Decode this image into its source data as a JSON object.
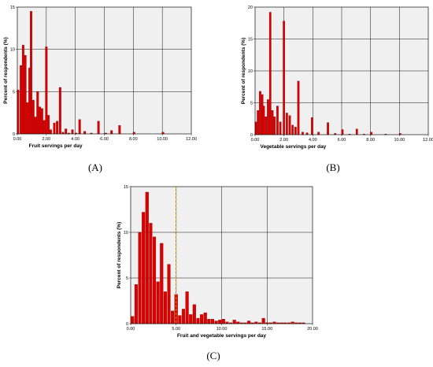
{
  "chart_data": [
    {
      "type": "bar",
      "panel_label": "(A)",
      "xlabel": "Fruit servings per day",
      "ylabel": "Percent of respondents (%)",
      "xlim": [
        0,
        12
      ],
      "ylim": [
        0,
        15
      ],
      "xticks": [
        "0.00",
        "2.00",
        "4.00",
        "6.00",
        "8.00",
        "10.00",
        "12.00"
      ],
      "yticks": [
        "0",
        "5",
        "10",
        "15"
      ],
      "grid": true,
      "bar_color": "#dd0000",
      "plot_bg": "#f0f0f0",
      "x": [
        0.05,
        0.25,
        0.4,
        0.55,
        0.7,
        0.85,
        0.95,
        1.1,
        1.25,
        1.4,
        1.55,
        1.7,
        1.85,
        2.0,
        2.15,
        2.3,
        2.55,
        2.75,
        2.95,
        3.15,
        3.35,
        3.55,
        3.8,
        4.05,
        4.3,
        4.65,
        5.1,
        5.6,
        6.1,
        6.5,
        7.05,
        8.05,
        10.05
      ],
      "values": [
        5.2,
        8.1,
        10.5,
        9.3,
        3.7,
        7.8,
        14.5,
        4.0,
        2.0,
        5.0,
        3.2,
        3.0,
        1.6,
        10.3,
        2.2,
        0.5,
        1.3,
        1.5,
        5.5,
        0.2,
        0.6,
        0.1,
        0.5,
        0.1,
        1.7,
        0.3,
        0.1,
        1.5,
        0.1,
        0.4,
        1.0,
        0.2,
        0.2
      ]
    },
    {
      "type": "bar",
      "panel_label": "(B)",
      "xlabel": "Vegetable servings per day",
      "ylabel": "Percent of respondents (%)",
      "xlim": [
        0,
        12
      ],
      "ylim": [
        0,
        20
      ],
      "xticks": [
        "0.00",
        "2.00",
        "4.00",
        "6.00",
        "8.00",
        "10.00",
        "12.00"
      ],
      "yticks": [
        "0",
        "5",
        "10",
        "15",
        "20"
      ],
      "grid": true,
      "bar_color": "#dd0000",
      "plot_bg": "#f0f0f0",
      "x": [
        0.05,
        0.2,
        0.35,
        0.5,
        0.6,
        0.75,
        0.9,
        1.05,
        1.2,
        1.35,
        1.55,
        1.75,
        2.0,
        2.2,
        2.4,
        2.6,
        2.8,
        3.0,
        3.3,
        3.6,
        3.95,
        4.4,
        5.05,
        5.55,
        6.05,
        6.55,
        7.05,
        7.55,
        8.05,
        9.05,
        10.05
      ],
      "values": [
        2.0,
        3.8,
        6.8,
        6.3,
        4.5,
        2.8,
        5.5,
        19.2,
        3.8,
        2.8,
        4.5,
        2.0,
        17.8,
        3.4,
        3.0,
        1.5,
        1.2,
        8.4,
        0.4,
        0.3,
        2.7,
        0.4,
        1.9,
        0.2,
        0.8,
        0.1,
        0.9,
        0.1,
        0.4,
        0.1,
        0.2
      ]
    },
    {
      "type": "bar",
      "panel_label": "(C)",
      "xlabel": "Fruit and vegetable servings per day",
      "ylabel": "Percent of respondents (%)",
      "xlim": [
        0,
        20
      ],
      "ylim": [
        0,
        15
      ],
      "xticks": [
        "0.00",
        "5.00",
        "10.00",
        "15.00",
        "20.00"
      ],
      "yticks": [
        "0",
        "5",
        "10",
        "15"
      ],
      "grid": true,
      "reference_line_x": 5,
      "bar_color": "#dd0000",
      "plot_bg": "#f0f0f0",
      "x": [
        0.2,
        0.6,
        1.0,
        1.4,
        1.8,
        2.2,
        2.6,
        3.0,
        3.4,
        3.8,
        4.2,
        4.6,
        5.0,
        5.4,
        5.8,
        6.2,
        6.6,
        7.0,
        7.4,
        7.8,
        8.2,
        8.6,
        9.0,
        9.4,
        9.8,
        10.2,
        10.6,
        11.0,
        11.4,
        11.8,
        12.2,
        12.6,
        13.0,
        13.4,
        13.8,
        14.2,
        14.6,
        15.0,
        15.4,
        15.8,
        16.2,
        16.6,
        17.0,
        17.4,
        17.8,
        18.2,
        18.6,
        19.0
      ],
      "values": [
        0.8,
        4.3,
        10.0,
        12.2,
        14.4,
        11.0,
        9.5,
        4.6,
        8.8,
        3.5,
        6.5,
        1.4,
        3.2,
        0.9,
        1.6,
        3.5,
        1.0,
        2.1,
        0.6,
        1.0,
        1.2,
        0.5,
        0.5,
        0.3,
        0.4,
        0.5,
        0.2,
        0.1,
        0.4,
        0.2,
        0.1,
        0.1,
        0.3,
        0.1,
        0.2,
        0.1,
        0.6,
        0.1,
        0.1,
        0.2,
        0.1,
        0.1,
        0.1,
        0.1,
        0.2,
        0.1,
        0.1,
        0.1
      ]
    }
  ]
}
